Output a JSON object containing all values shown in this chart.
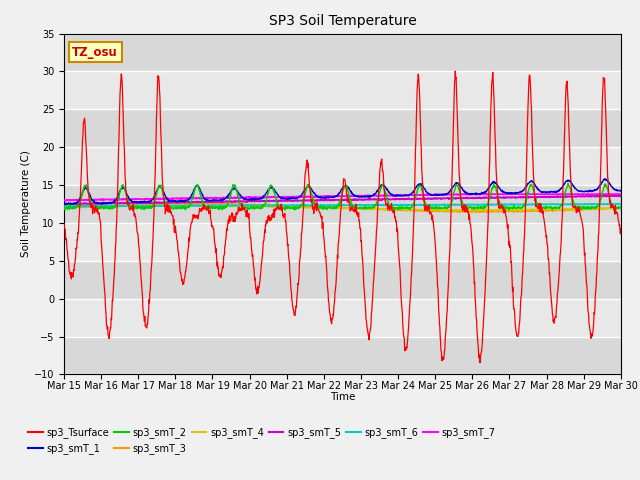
{
  "title": "SP3 Soil Temperature",
  "ylabel": "Soil Temperature (C)",
  "xlabel": "Time",
  "ylim": [
    -10,
    35
  ],
  "xlim": [
    0,
    360
  ],
  "annotation": "TZ_osu",
  "fig_facecolor": "#f0f0f0",
  "ax_facecolor": "#e8e8e8",
  "series_colors": {
    "sp3_Tsurface": "#ff0000",
    "sp3_smT_1": "#0000cc",
    "sp3_smT_2": "#00cc00",
    "sp3_smT_3": "#ff9900",
    "sp3_smT_4": "#cccc00",
    "sp3_smT_5": "#cc00cc",
    "sp3_smT_6": "#00cccc",
    "sp3_smT_7": "#ff00ff"
  },
  "xtick_labels": [
    "Mar 15",
    "Mar 16",
    "Mar 17",
    "Mar 18",
    "Mar 19",
    "Mar 20",
    "Mar 21",
    "Mar 22",
    "Mar 23",
    "Mar 24",
    "Mar 25",
    "Mar 26",
    "Mar 27",
    "Mar 28",
    "Mar 29",
    "Mar 30"
  ],
  "xtick_positions": [
    0,
    24,
    48,
    72,
    96,
    120,
    144,
    168,
    192,
    216,
    240,
    264,
    288,
    312,
    336,
    360
  ],
  "ytick_positions": [
    -10,
    -5,
    0,
    5,
    10,
    15,
    20,
    25,
    30,
    35
  ]
}
